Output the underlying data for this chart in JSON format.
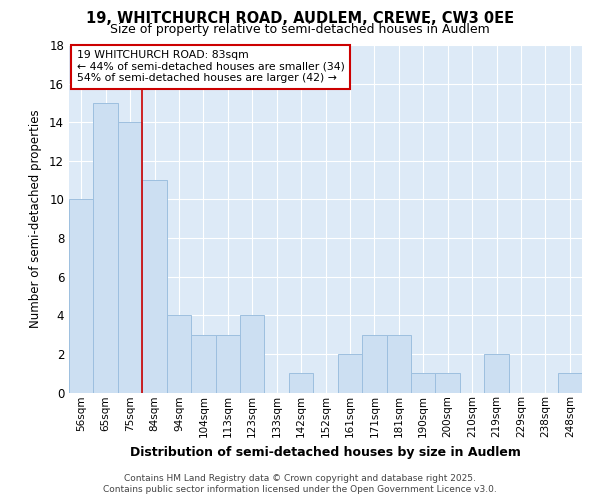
{
  "title1": "19, WHITCHURCH ROAD, AUDLEM, CREWE, CW3 0EE",
  "title2": "Size of property relative to semi-detached houses in Audlem",
  "xlabel": "Distribution of semi-detached houses by size in Audlem",
  "ylabel": "Number of semi-detached properties",
  "categories": [
    "56sqm",
    "65sqm",
    "75sqm",
    "84sqm",
    "94sqm",
    "104sqm",
    "113sqm",
    "123sqm",
    "133sqm",
    "142sqm",
    "152sqm",
    "161sqm",
    "171sqm",
    "181sqm",
    "190sqm",
    "200sqm",
    "210sqm",
    "219sqm",
    "229sqm",
    "238sqm",
    "248sqm"
  ],
  "values": [
    10,
    15,
    14,
    11,
    4,
    3,
    3,
    4,
    0,
    1,
    0,
    2,
    3,
    3,
    1,
    1,
    0,
    2,
    0,
    0,
    1
  ],
  "bar_color": "#ccdff2",
  "bar_edge_color": "#9dbfdf",
  "vline_x": 2.5,
  "vline_label": "19 WHITCHURCH ROAD: 83sqm",
  "annotation_line1": "← 44% of semi-detached houses are smaller (34)",
  "annotation_line2": "54% of semi-detached houses are larger (42) →",
  "annotation_box_color": "#ffffff",
  "annotation_border_color": "#cc0000",
  "vline_color": "#cc0000",
  "ylim": [
    0,
    18
  ],
  "yticks": [
    0,
    2,
    4,
    6,
    8,
    10,
    12,
    14,
    16,
    18
  ],
  "background_color": "#ddeaf7",
  "grid_color": "#ffffff",
  "footer": "Contains HM Land Registry data © Crown copyright and database right 2025.\nContains public sector information licensed under the Open Government Licence v3.0.",
  "fig_bg": "#ffffff"
}
